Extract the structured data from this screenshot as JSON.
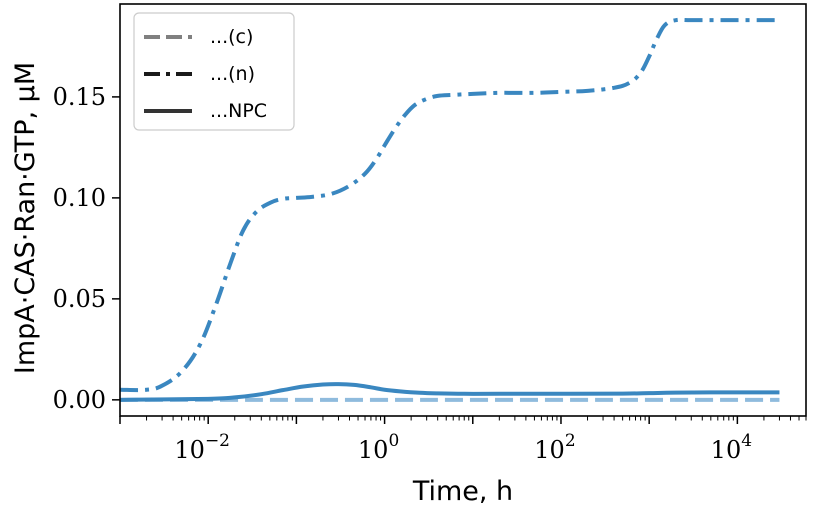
{
  "chart_data": {
    "type": "line",
    "xscale": "log",
    "xlabel": "Time, h",
    "ylabel": "ImpA·CAS·Ran·GTP, μM",
    "xlim": [
      0.001,
      60000
    ],
    "ylim": [
      -0.008,
      0.196
    ],
    "grid": false,
    "legend_position": "top-left",
    "x_ticks": [
      {
        "value": 0.01,
        "base": "10",
        "exp": "−2"
      },
      {
        "value": 1,
        "base": "10",
        "exp": "0"
      },
      {
        "value": 100,
        "base": "10",
        "exp": "2"
      },
      {
        "value": 10000,
        "base": "10",
        "exp": "4"
      }
    ],
    "y_ticks": [
      {
        "value": 0.0,
        "label": "0.00"
      },
      {
        "value": 0.05,
        "label": "0.05"
      },
      {
        "value": 0.1,
        "label": "0.10"
      },
      {
        "value": 0.15,
        "label": "0.15"
      }
    ],
    "series": [
      {
        "name": "...(c)",
        "color": "#8fbbdd",
        "legend_color": "#808080",
        "style": "dashed",
        "x": [
          0.001,
          0.01,
          0.1,
          1,
          10,
          100,
          1000,
          10000,
          30000
        ],
        "y": [
          0.0,
          0.0,
          0.0,
          0.0,
          0.0,
          0.0,
          0.0,
          0.0,
          0.0
        ]
      },
      {
        "name": "...(n)",
        "color": "#3a87c0",
        "legend_color": "#1a1a1a",
        "style": "dashdot",
        "x": [
          0.001,
          0.002,
          0.003,
          0.005,
          0.008,
          0.012,
          0.018,
          0.025,
          0.035,
          0.05,
          0.07,
          0.1,
          0.15,
          0.25,
          0.4,
          0.6,
          0.8,
          1.0,
          1.3,
          1.7,
          2.2,
          3,
          4,
          6,
          10,
          20,
          50,
          100,
          200,
          400,
          600,
          800,
          1000,
          1200,
          1500,
          2000,
          3000,
          10000,
          30000
        ],
        "y": [
          0.005,
          0.005,
          0.007,
          0.014,
          0.027,
          0.046,
          0.068,
          0.084,
          0.093,
          0.0975,
          0.0995,
          0.1,
          0.1005,
          0.102,
          0.106,
          0.112,
          0.119,
          0.126,
          0.134,
          0.141,
          0.146,
          0.149,
          0.1505,
          0.151,
          0.1515,
          0.152,
          0.152,
          0.1525,
          0.153,
          0.1545,
          0.157,
          0.162,
          0.17,
          0.178,
          0.1855,
          0.188,
          0.188,
          0.188,
          0.188
        ]
      },
      {
        "name": "...NPC",
        "color": "#3a87c0",
        "legend_color": "#333333",
        "style": "solid",
        "x": [
          0.001,
          0.01,
          0.02,
          0.04,
          0.07,
          0.12,
          0.2,
          0.3,
          0.45,
          0.7,
          1.0,
          1.5,
          2.5,
          4,
          8,
          20,
          100,
          500,
          1000,
          2000,
          10000,
          30000
        ],
        "y": [
          0.0,
          0.0005,
          0.0012,
          0.0028,
          0.0048,
          0.0066,
          0.0076,
          0.0078,
          0.0074,
          0.0062,
          0.005,
          0.0042,
          0.0035,
          0.0032,
          0.003,
          0.003,
          0.003,
          0.0031,
          0.0033,
          0.0036,
          0.0037,
          0.0037
        ]
      }
    ]
  }
}
